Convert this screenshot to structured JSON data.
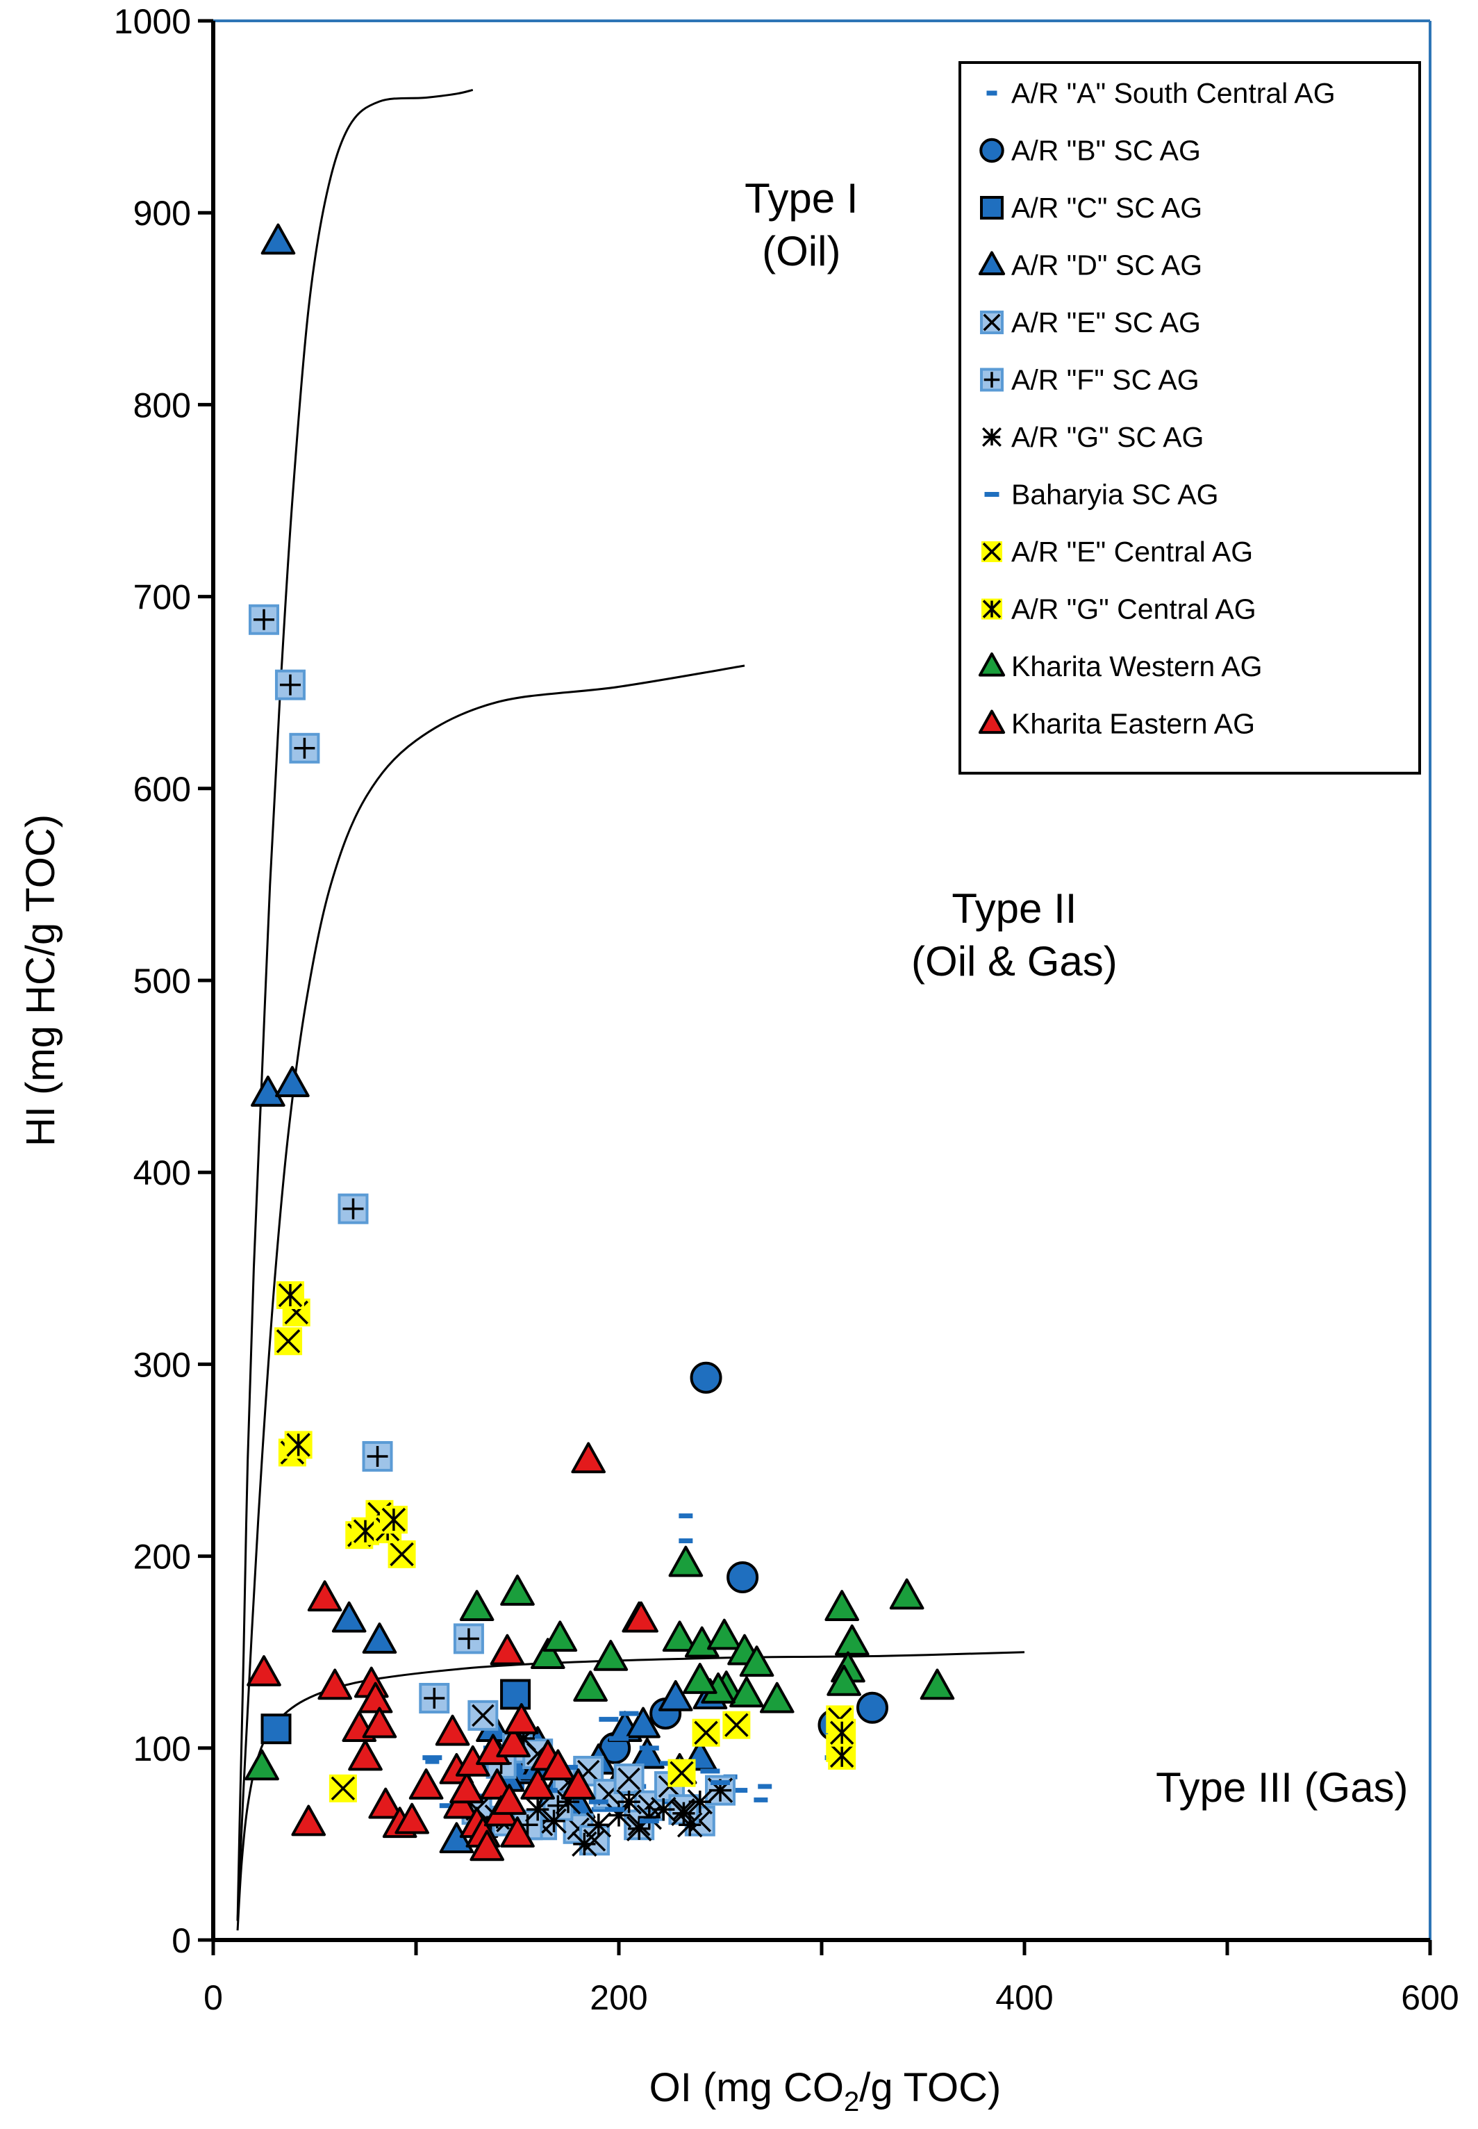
{
  "chart_data": {
    "type": "scatter",
    "xlabel": {
      "prefix": "OI (mg CO",
      "sub": "2",
      "suffix": "/g TOC)"
    },
    "ylabel": "HI (mg HC/g TOC)",
    "xlim": [
      0,
      600
    ],
    "ylim": [
      0,
      1000
    ],
    "xticks": [
      0,
      200,
      400,
      600
    ],
    "yticks": [
      0,
      100,
      200,
      300,
      400,
      500,
      600,
      700,
      800,
      900,
      1000
    ],
    "grid": false,
    "legend_position": "top-right",
    "annotations": [
      {
        "lines": [
          "Type I",
          "(Oil)"
        ],
        "x": 290,
        "y": 900
      },
      {
        "lines": [
          "Type II",
          "(Oil & Gas)"
        ],
        "x": 395,
        "y": 530
      },
      {
        "lines": [
          "Type III (Gas)"
        ],
        "x": 527,
        "y": 72
      }
    ],
    "boundary_curves": [
      {
        "name": "type-i-boundary",
        "points": [
          [
            12,
            10
          ],
          [
            13,
            60
          ],
          [
            15,
            150
          ],
          [
            17,
            250
          ],
          [
            20,
            350
          ],
          [
            24,
            450
          ],
          [
            28,
            550
          ],
          [
            33,
            650
          ],
          [
            39,
            750
          ],
          [
            47,
            850
          ],
          [
            56,
            910
          ],
          [
            67,
            945
          ],
          [
            82,
            958
          ],
          [
            105,
            960
          ],
          [
            120,
            962
          ],
          [
            128,
            964
          ]
        ]
      },
      {
        "name": "type-ii-boundary",
        "points": [
          [
            12,
            10
          ],
          [
            15,
            80
          ],
          [
            19,
            160
          ],
          [
            24,
            250
          ],
          [
            30,
            340
          ],
          [
            37,
            420
          ],
          [
            46,
            490
          ],
          [
            58,
            550
          ],
          [
            75,
            595
          ],
          [
            100,
            625
          ],
          [
            140,
            645
          ],
          [
            200,
            653
          ],
          [
            262,
            664
          ]
        ]
      },
      {
        "name": "type-iii-boundary",
        "points": [
          [
            12,
            5
          ],
          [
            14,
            40
          ],
          [
            17,
            70
          ],
          [
            22,
            95
          ],
          [
            30,
            112
          ],
          [
            45,
            125
          ],
          [
            70,
            134
          ],
          [
            110,
            140
          ],
          [
            160,
            144
          ],
          [
            250,
            147
          ],
          [
            330,
            148
          ],
          [
            400,
            150
          ]
        ]
      }
    ],
    "series": [
      {
        "name": "A/R \"A\" South Central AG",
        "marker": "dash-small",
        "color": "#1f6fbf",
        "points": [
          [
            233,
            221
          ],
          [
            233,
            208
          ],
          [
            108,
            93
          ],
          [
            118,
            87
          ],
          [
            115,
            70
          ],
          [
            150,
            80
          ],
          [
            165,
            75
          ],
          [
            200,
            95
          ],
          [
            210,
            80
          ],
          [
            225,
            72
          ],
          [
            255,
            85
          ],
          [
            260,
            78
          ],
          [
            272,
            80
          ],
          [
            270,
            73
          ],
          [
            305,
            95
          ],
          [
            310,
            92
          ],
          [
            135,
            60
          ],
          [
            180,
            62
          ],
          [
            190,
            68
          ]
        ]
      },
      {
        "name": "A/R \"B\" SC AG",
        "marker": "circle",
        "color": "#1f6fbf",
        "points": [
          [
            243,
            293
          ],
          [
            261,
            189
          ],
          [
            223,
            118
          ],
          [
            325,
            121
          ],
          [
            306,
            112
          ],
          [
            198,
            100
          ]
        ]
      },
      {
        "name": "A/R \"C\" SC AG",
        "marker": "square",
        "color": "#1f6fbf",
        "points": [
          [
            31,
            110
          ],
          [
            149,
            128
          ]
        ]
      },
      {
        "name": "A/R \"D\" SC AG",
        "marker": "triangle",
        "color": "#1f6fbf",
        "points": [
          [
            32,
            885
          ],
          [
            27,
            441
          ],
          [
            39,
            446
          ],
          [
            67,
            167
          ],
          [
            82,
            156
          ],
          [
            210,
            167
          ],
          [
            228,
            126
          ],
          [
            245,
            127
          ],
          [
            203,
            110
          ],
          [
            212,
            112
          ],
          [
            120,
            52
          ],
          [
            132,
            60
          ],
          [
            150,
            88
          ],
          [
            160,
            90
          ],
          [
            168,
            76
          ],
          [
            180,
            70
          ],
          [
            190,
            93
          ],
          [
            200,
            82
          ],
          [
            214,
            96
          ],
          [
            230,
            88
          ],
          [
            240,
            95
          ],
          [
            140,
            96
          ],
          [
            145,
            84
          ],
          [
            138,
            110
          ],
          [
            160,
            102
          ]
        ]
      },
      {
        "name": "A/R \"E\" SC AG",
        "marker": "square-x",
        "color": "#1f6fbf",
        "points": [
          [
            133,
            117
          ],
          [
            150,
            100
          ],
          [
            160,
            97
          ],
          [
            175,
            82
          ],
          [
            185,
            88
          ],
          [
            195,
            76
          ],
          [
            205,
            84
          ],
          [
            215,
            70
          ],
          [
            225,
            80
          ],
          [
            240,
            62
          ],
          [
            250,
            78
          ],
          [
            180,
            58
          ],
          [
            130,
            68
          ],
          [
            145,
            62
          ],
          [
            162,
            60
          ],
          [
            188,
            52
          ],
          [
            210,
            60
          ],
          [
            232,
            68
          ]
        ]
      },
      {
        "name": "A/R \"F\" SC AG",
        "marker": "square-plus",
        "color": "#1f6fbf",
        "points": [
          [
            25,
            688
          ],
          [
            38,
            654
          ],
          [
            45,
            621
          ],
          [
            69,
            381
          ],
          [
            81,
            252
          ],
          [
            126,
            157
          ],
          [
            109,
            126
          ],
          [
            142,
            92
          ],
          [
            155,
            60
          ],
          [
            170,
            70
          ]
        ]
      },
      {
        "name": "A/R \"G\" SC AG",
        "marker": "star",
        "color": "#1f6fbf",
        "points": [
          [
            140,
            64
          ],
          [
            160,
            68
          ],
          [
            168,
            62
          ],
          [
            175,
            72
          ],
          [
            183,
            50
          ],
          [
            190,
            60
          ],
          [
            200,
            65
          ],
          [
            205,
            72
          ],
          [
            210,
            58
          ],
          [
            215,
            64
          ],
          [
            222,
            68
          ],
          [
            232,
            66
          ],
          [
            240,
            72
          ],
          [
            250,
            78
          ],
          [
            235,
            60
          ],
          [
            153,
            105
          ]
        ]
      },
      {
        "name": "Baharyia SC AG",
        "marker": "dash",
        "color": "#1f6fbf",
        "points": [
          [
            108,
            95
          ],
          [
            125,
            88
          ],
          [
            130,
            75
          ],
          [
            145,
            70
          ],
          [
            155,
            85
          ],
          [
            165,
            78
          ],
          [
            175,
            90
          ],
          [
            195,
            115
          ],
          [
            200,
            105
          ],
          [
            205,
            118
          ],
          [
            215,
            100
          ],
          [
            225,
            92
          ],
          [
            245,
            88
          ],
          [
            250,
            82
          ],
          [
            215,
            62
          ],
          [
            190,
            72
          ],
          [
            138,
            100
          ],
          [
            198,
            68
          ]
        ]
      },
      {
        "name": "A/R \"E\" Central AG",
        "marker": "x-yellow",
        "color": "#ffff00",
        "points": [
          [
            37,
            312
          ],
          [
            41,
            327
          ],
          [
            39,
            254
          ],
          [
            64,
            79
          ],
          [
            72,
            211
          ],
          [
            82,
            222
          ],
          [
            93,
            201
          ],
          [
            231,
            87
          ],
          [
            243,
            108
          ],
          [
            258,
            112
          ],
          [
            309,
            115
          ],
          [
            309,
            100
          ]
        ]
      },
      {
        "name": "A/R \"G\" Central AG",
        "marker": "star-yellow",
        "color": "#ffff00",
        "points": [
          [
            38,
            336
          ],
          [
            42,
            258
          ],
          [
            75,
            213
          ],
          [
            86,
            214
          ],
          [
            89,
            219
          ],
          [
            310,
            96
          ],
          [
            310,
            108
          ]
        ]
      },
      {
        "name": "Kharita Western AG",
        "marker": "triangle",
        "color": "#1a9e3c",
        "points": [
          [
            24,
            90
          ],
          [
            130,
            173
          ],
          [
            150,
            181
          ],
          [
            165,
            148
          ],
          [
            171,
            157
          ],
          [
            186,
            131
          ],
          [
            196,
            147
          ],
          [
            233,
            196
          ],
          [
            230,
            157
          ],
          [
            241,
            154
          ],
          [
            252,
            158
          ],
          [
            262,
            150
          ],
          [
            268,
            144
          ],
          [
            253,
            131
          ],
          [
            263,
            128
          ],
          [
            278,
            125
          ],
          [
            310,
            173
          ],
          [
            315,
            155
          ],
          [
            313,
            141
          ],
          [
            311,
            134
          ],
          [
            342,
            179
          ],
          [
            357,
            132
          ],
          [
            249,
            130
          ],
          [
            240,
            135
          ]
        ]
      },
      {
        "name": "Kharita Eastern AG",
        "marker": "triangle",
        "color": "#e31a1c",
        "points": [
          [
            25,
            139
          ],
          [
            47,
            61
          ],
          [
            55,
            178
          ],
          [
            60,
            132
          ],
          [
            72,
            110
          ],
          [
            75,
            95
          ],
          [
            78,
            133
          ],
          [
            80,
            125
          ],
          [
            82,
            112
          ],
          [
            85,
            70
          ],
          [
            92,
            60
          ],
          [
            98,
            62
          ],
          [
            105,
            80
          ],
          [
            118,
            108
          ],
          [
            120,
            88
          ],
          [
            122,
            70
          ],
          [
            125,
            78
          ],
          [
            128,
            92
          ],
          [
            130,
            60
          ],
          [
            133,
            55
          ],
          [
            135,
            48
          ],
          [
            138,
            98
          ],
          [
            140,
            80
          ],
          [
            142,
            66
          ],
          [
            145,
            150
          ],
          [
            146,
            72
          ],
          [
            148,
            102
          ],
          [
            150,
            55
          ],
          [
            152,
            114
          ],
          [
            160,
            80
          ],
          [
            165,
            95
          ],
          [
            170,
            90
          ],
          [
            180,
            80
          ],
          [
            185,
            250
          ],
          [
            211,
            167
          ]
        ]
      }
    ]
  }
}
